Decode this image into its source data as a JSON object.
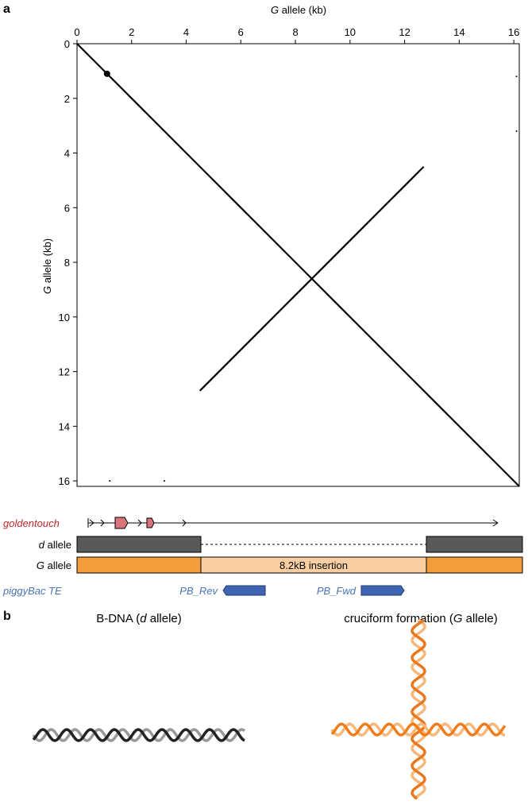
{
  "panel_labels": [
    "a",
    "b"
  ],
  "chart_data": {
    "type": "line",
    "xlabel": {
      "italic": "G",
      "text": " allele (kb)"
    },
    "ylabel": {
      "italic": "G",
      "text": " allele (kb)"
    },
    "xlim": [
      0,
      16.2
    ],
    "ylim": [
      0,
      16.2
    ],
    "y_inverted": true,
    "xticks": [
      0,
      2,
      4,
      6,
      8,
      10,
      12,
      14,
      16
    ],
    "yticks": [
      0,
      2,
      4,
      6,
      8,
      10,
      12,
      14,
      16
    ],
    "series": [
      {
        "mode": "line",
        "color": "#000000",
        "x": [
          0,
          16.2
        ],
        "values": [
          0,
          16.2
        ]
      },
      {
        "mode": "line",
        "color": "#000000",
        "x": [
          4.5,
          12.7
        ],
        "values": [
          12.7,
          4.5
        ]
      },
      {
        "mode": "markers",
        "color": "#000000",
        "x": [
          1.1,
          16.1,
          16.1,
          1.2,
          3.2
        ],
        "values": [
          1.1,
          1.2,
          3.2,
          16.0,
          16.0
        ],
        "sizes": [
          4,
          1,
          1,
          1,
          1
        ]
      }
    ]
  },
  "tracks": {
    "gene": "goldentouch",
    "d_allele": "d allele",
    "g_allele": "G allele",
    "insertion": "8.2kB insertion",
    "te": "piggyBac TE",
    "pb_rev": "PB_Rev",
    "pb_fwd": "PB_Fwd"
  },
  "panel_b": {
    "left": [
      "B-DNA (",
      "d",
      " allele)"
    ],
    "right": [
      "cruciform formation (",
      "G",
      " allele)"
    ]
  }
}
